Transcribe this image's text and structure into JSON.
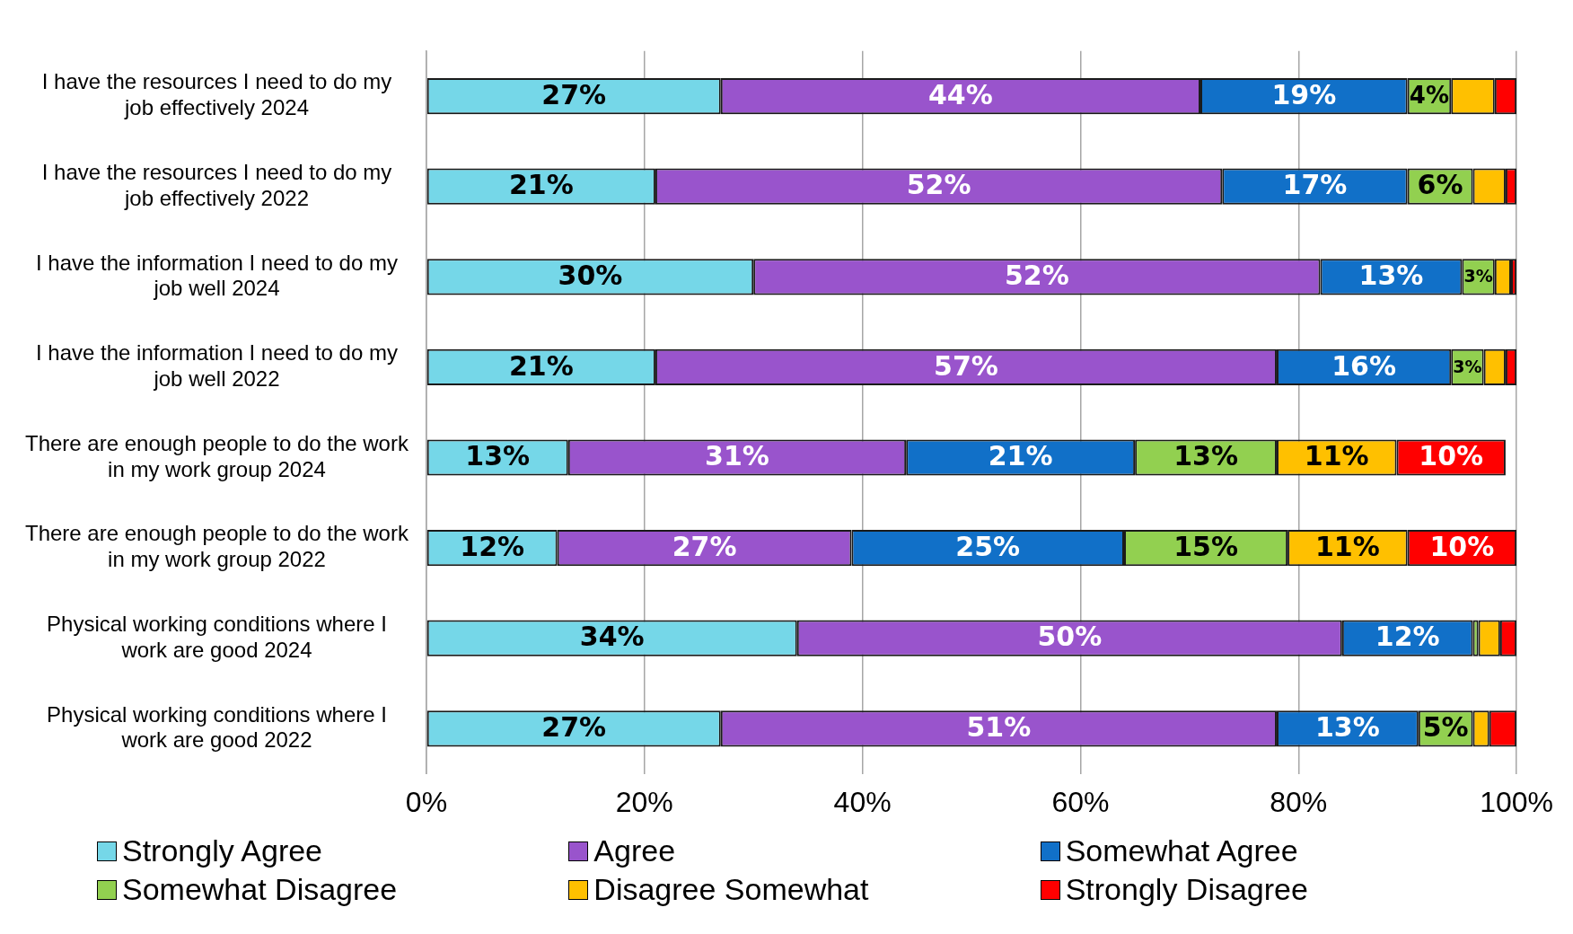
{
  "chart_data": {
    "type": "bar",
    "orientation": "horizontal",
    "stacked": true,
    "categories": [
      "I have the resources I need to do my job effectively 2024",
      "I have the resources I need to do my job effectively 2022",
      "I have the information I need to do my job well 2024",
      "I have the information I need to do my job well 2022",
      "There are enough people to do the work in my work group 2024",
      "There are enough people to do the work in my work group 2022",
      "Physical working conditions where I work are good 2024",
      "Physical working conditions where I work are good 2022"
    ],
    "series": [
      {
        "name": "Strongly Agree",
        "color": "#75d7e8",
        "values": [
          27,
          21,
          30,
          21,
          13,
          12,
          34,
          27
        ],
        "value_labels": [
          "27%",
          "21%",
          "30%",
          "21%",
          "13%",
          "12%",
          "34%",
          "27%"
        ]
      },
      {
        "name": "Agree",
        "color": "#9954cc",
        "values": [
          44,
          52,
          52,
          57,
          31,
          27,
          50,
          51
        ],
        "value_labels": [
          "44%",
          "52%",
          "52%",
          "57%",
          "31%",
          "27%",
          "50%",
          "51%"
        ]
      },
      {
        "name": "Somewhat Agree",
        "color": "#1170c8",
        "values": [
          19,
          17,
          13,
          16,
          21,
          25,
          12,
          13
        ],
        "value_labels": [
          "19%",
          "17%",
          "13%",
          "16%",
          "21%",
          "25%",
          "12%",
          "13%"
        ]
      },
      {
        "name": "Somewhat Disagree",
        "color": "#92d050",
        "values": [
          4,
          6,
          3,
          3,
          13,
          15,
          0.5,
          5
        ],
        "value_labels": [
          "4%",
          "6%",
          "3%",
          "3%",
          "13%",
          "15%",
          null,
          "5%"
        ]
      },
      {
        "name": "Disagree Somewhat",
        "color": "#ffc000",
        "values": [
          4,
          3,
          1.5,
          2,
          11,
          11,
          2,
          1.5
        ],
        "value_labels": [
          null,
          null,
          null,
          null,
          "11%",
          "11%",
          null,
          null
        ]
      },
      {
        "name": "Strongly Disagree",
        "color": "#ff0000",
        "values": [
          2,
          1,
          0.5,
          1,
          10,
          10,
          1.5,
          2.5
        ],
        "value_labels": [
          null,
          null,
          null,
          null,
          "10%",
          "10%",
          null,
          null
        ]
      }
    ],
    "xlim": [
      0,
      100
    ],
    "xticks": [
      {
        "value": 0,
        "label": "0%"
      },
      {
        "value": 20,
        "label": "20%"
      },
      {
        "value": 40,
        "label": "40%"
      },
      {
        "value": 60,
        "label": "60%"
      },
      {
        "value": 80,
        "label": "80%"
      },
      {
        "value": 100,
        "label": "100%"
      }
    ],
    "grid": "x",
    "legend": "bottom"
  }
}
